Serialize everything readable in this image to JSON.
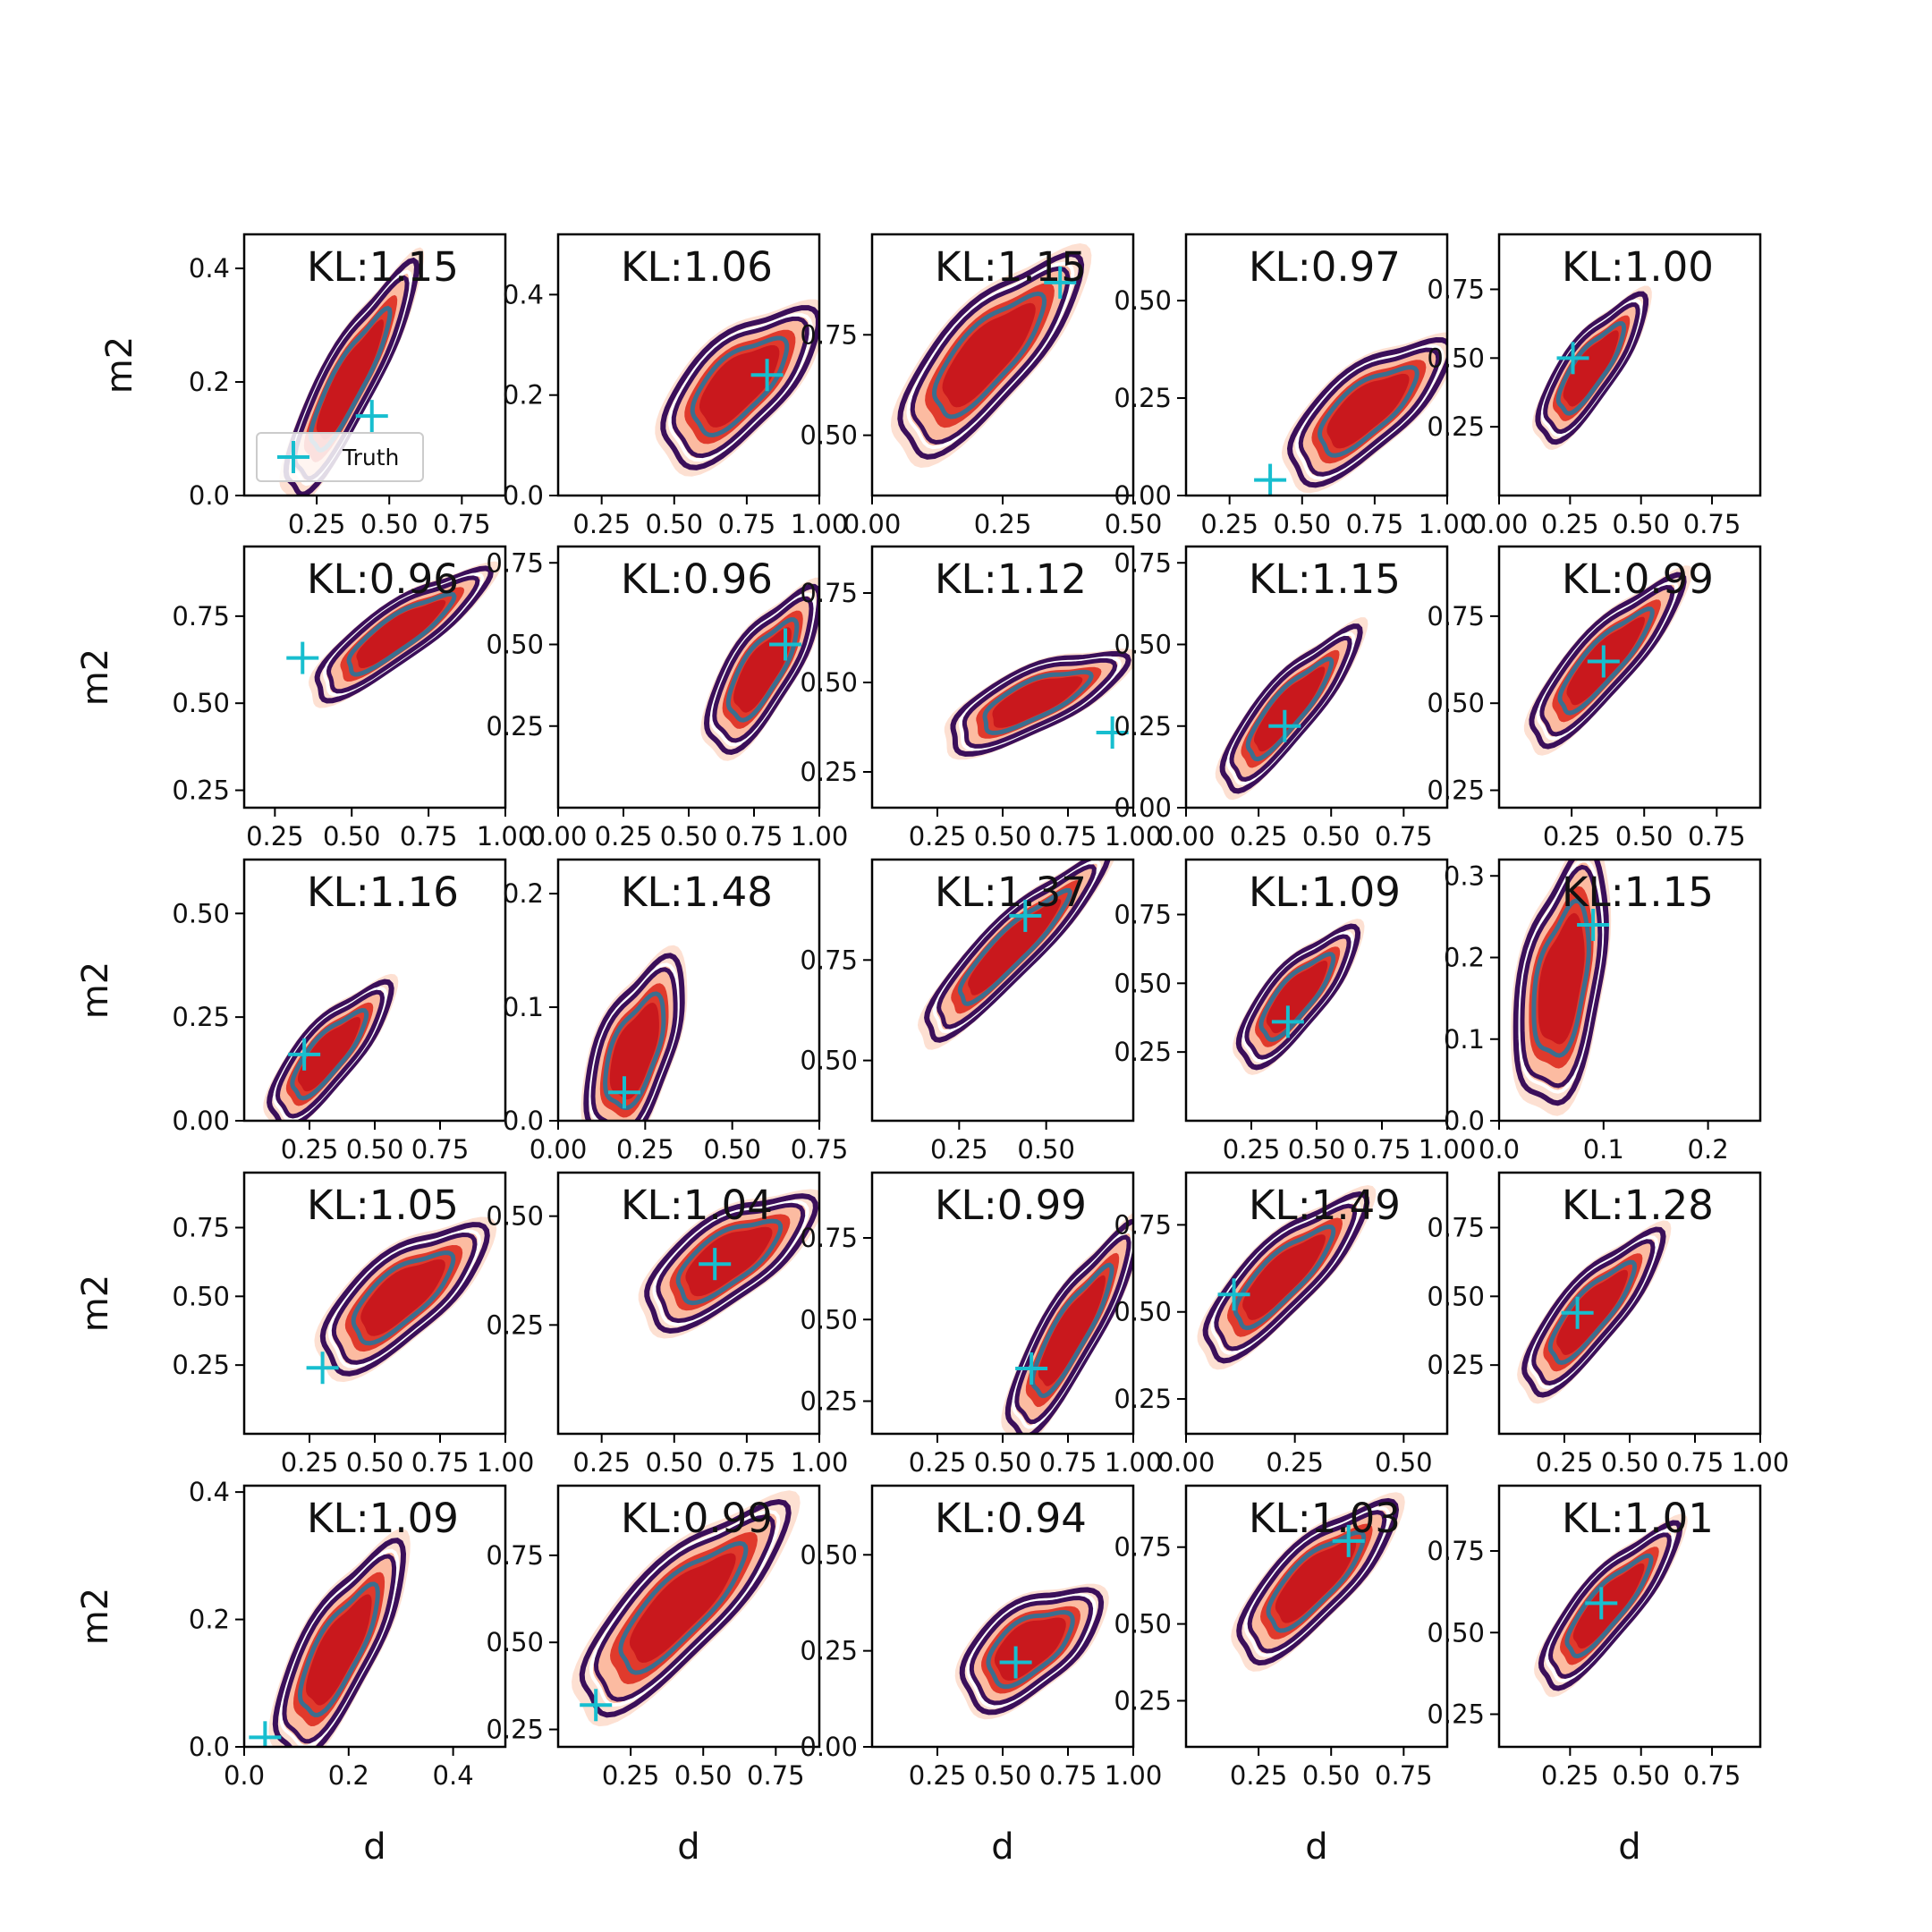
{
  "chart_data": {
    "type": "contour",
    "grid": {
      "rows": 5,
      "cols": 5
    },
    "xlabel": "d",
    "ylabel": "m2",
    "kl_prefix": "KL:",
    "legend": {
      "label": "Truth",
      "placement": "lower-left",
      "panel": 0
    },
    "colors": {
      "fill_levels": [
        "#fde0d2",
        "#fcbba1",
        "#e03a2c",
        "#c9181d"
      ],
      "line_outer": "#3b0f5a",
      "line_mid": "#ffffff",
      "line_inner": "#3b6e8f",
      "truth": "#17becf",
      "frame": "#000000"
    },
    "panels": [
      {
        "kl": "1.15",
        "xlim": [
          0.0,
          0.9
        ],
        "ylim": [
          0.0,
          0.46
        ],
        "xticks": [
          0.25,
          0.5,
          0.75
        ],
        "xtick_labels": [
          "0.25",
          "0.50",
          "0.75"
        ],
        "yticks": [
          0.0,
          0.2,
          0.4
        ],
        "ytick_labels": [
          "0.0",
          "0.2",
          "0.4"
        ],
        "truth": [
          0.44,
          0.14
        ],
        "center": [
          0.36,
          0.2
        ],
        "spread": [
          0.12,
          0.16
        ],
        "angle": 62
      },
      {
        "kl": "1.06",
        "xlim": [
          0.1,
          1.0
        ],
        "ylim": [
          0.0,
          0.52
        ],
        "xticks": [
          0.25,
          0.5,
          0.75,
          1.0
        ],
        "xtick_labels": [
          "0.25",
          "0.50",
          "0.75",
          "1.00"
        ],
        "yticks": [
          0.0,
          0.2,
          0.4
        ],
        "ytick_labels": [
          "0.0",
          "0.2",
          "0.4"
        ],
        "truth": [
          0.82,
          0.24
        ],
        "center": [
          0.72,
          0.22
        ],
        "spread": [
          0.2,
          0.14
        ],
        "angle": 45
      },
      {
        "kl": "1.15",
        "xlim": [
          0.0,
          0.5
        ],
        "ylim": [
          0.35,
          1.0
        ],
        "xticks": [
          0.0,
          0.25,
          0.5
        ],
        "xtick_labels": [
          "0.00",
          "0.25",
          "0.50"
        ],
        "yticks": [
          0.5,
          0.75
        ],
        "ytick_labels": [
          "0.50",
          "0.75"
        ],
        "truth": [
          0.36,
          0.88
        ],
        "center": [
          0.22,
          0.7
        ],
        "spread": [
          0.11,
          0.22
        ],
        "angle": 48
      },
      {
        "kl": "0.97",
        "xlim": [
          0.1,
          1.0
        ],
        "ylim": [
          0.0,
          0.67
        ],
        "xticks": [
          0.25,
          0.5,
          0.75,
          1.0
        ],
        "xtick_labels": [
          "0.25",
          "0.50",
          "0.75",
          "1.00"
        ],
        "yticks": [
          0.0,
          0.25,
          0.5
        ],
        "ytick_labels": [
          "0.00",
          "0.25",
          "0.50"
        ],
        "truth": [
          0.39,
          0.04
        ],
        "center": [
          0.72,
          0.22
        ],
        "spread": [
          0.24,
          0.13
        ],
        "angle": 40
      },
      {
        "kl": "1.00",
        "xlim": [
          0.0,
          0.92
        ],
        "ylim": [
          0.0,
          0.95
        ],
        "xticks": [
          0.0,
          0.25,
          0.5,
          0.75
        ],
        "xtick_labels": [
          "0.00",
          "0.25",
          "0.50",
          "0.75"
        ],
        "yticks": [
          0.25,
          0.5,
          0.75
        ],
        "ytick_labels": [
          "0.25",
          "0.50",
          "0.75"
        ],
        "truth": [
          0.26,
          0.5
        ],
        "center": [
          0.32,
          0.46
        ],
        "spread": [
          0.12,
          0.22
        ],
        "angle": 55
      },
      {
        "kl": "0.96",
        "xlim": [
          0.15,
          1.0
        ],
        "ylim": [
          0.2,
          0.95
        ],
        "xticks": [
          0.25,
          0.5,
          0.75,
          1.0
        ],
        "xtick_labels": [
          "0.25",
          "0.50",
          "0.75",
          "1.00"
        ],
        "yticks": [
          0.25,
          0.5,
          0.75
        ],
        "ytick_labels": [
          "0.25",
          "0.50",
          "0.75"
        ],
        "truth": [
          0.34,
          0.63
        ],
        "center": [
          0.65,
          0.7
        ],
        "spread": [
          0.24,
          0.1
        ],
        "angle": 35
      },
      {
        "kl": "0.96",
        "xlim": [
          0.0,
          1.0
        ],
        "ylim": [
          0.0,
          0.8
        ],
        "xticks": [
          0.0,
          0.25,
          0.5,
          0.75,
          1.0
        ],
        "xtick_labels": [
          "0.00",
          "0.25",
          "0.50",
          "0.75",
          "1.00"
        ],
        "yticks": [
          0.25,
          0.5,
          0.75
        ],
        "ytick_labels": [
          "0.25",
          "0.50",
          "0.75"
        ],
        "truth": [
          0.87,
          0.5
        ],
        "center": [
          0.78,
          0.42
        ],
        "spread": [
          0.16,
          0.2
        ],
        "angle": 58
      },
      {
        "kl": "1.12",
        "xlim": [
          0.0,
          1.0
        ],
        "ylim": [
          0.15,
          0.88
        ],
        "xticks": [
          0.25,
          0.5,
          0.75,
          1.0
        ],
        "xtick_labels": [
          "0.25",
          "0.50",
          "0.75",
          "1.00"
        ],
        "yticks": [
          0.25,
          0.5,
          0.75
        ],
        "ytick_labels": [
          "0.25",
          "0.50",
          "0.75"
        ],
        "truth": [
          0.92,
          0.36
        ],
        "center": [
          0.62,
          0.45
        ],
        "spread": [
          0.26,
          0.11
        ],
        "angle": 25
      },
      {
        "kl": "1.15",
        "xlim": [
          0.0,
          0.9
        ],
        "ylim": [
          0.0,
          0.8
        ],
        "xticks": [
          0.0,
          0.25,
          0.5,
          0.75
        ],
        "xtick_labels": [
          "0.00",
          "0.25",
          "0.50",
          "0.75"
        ],
        "yticks": [
          0.0,
          0.25,
          0.5,
          0.75
        ],
        "ytick_labels": [
          "0.00",
          "0.25",
          "0.50",
          "0.75"
        ],
        "truth": [
          0.34,
          0.25
        ],
        "center": [
          0.35,
          0.3
        ],
        "spread": [
          0.12,
          0.22
        ],
        "angle": 50
      },
      {
        "kl": "0.99",
        "xlim": [
          0.0,
          0.9
        ],
        "ylim": [
          0.2,
          0.95
        ],
        "xticks": [
          0.25,
          0.5,
          0.75
        ],
        "xtick_labels": [
          "0.25",
          "0.50",
          "0.75"
        ],
        "yticks": [
          0.25,
          0.5,
          0.75
        ],
        "ytick_labels": [
          "0.25",
          "0.50",
          "0.75"
        ],
        "truth": [
          0.36,
          0.62
        ],
        "center": [
          0.36,
          0.62
        ],
        "spread": [
          0.13,
          0.22
        ],
        "angle": 48
      },
      {
        "kl": "1.16",
        "xlim": [
          0.0,
          1.0
        ],
        "ylim": [
          0.0,
          0.63
        ],
        "xticks": [
          0.25,
          0.5,
          0.75
        ],
        "xtick_labels": [
          "0.25",
          "0.50",
          "0.75"
        ],
        "yticks": [
          0.0,
          0.25,
          0.5
        ],
        "ytick_labels": [
          "0.00",
          "0.25",
          "0.50"
        ],
        "truth": [
          0.23,
          0.16
        ],
        "center": [
          0.32,
          0.16
        ],
        "spread": [
          0.14,
          0.15
        ],
        "angle": 50
      },
      {
        "kl": "1.48",
        "xlim": [
          0.0,
          0.75
        ],
        "ylim": [
          0.0,
          0.23
        ],
        "xticks": [
          0.0,
          0.25,
          0.5,
          0.75
        ],
        "xtick_labels": [
          "0.00",
          "0.25",
          "0.50",
          "0.75"
        ],
        "yticks": [
          0.0,
          0.1,
          0.2
        ],
        "ytick_labels": [
          "0.0",
          "0.1",
          "0.2"
        ],
        "truth": [
          0.19,
          0.025
        ],
        "center": [
          0.22,
          0.06
        ],
        "spread": [
          0.14,
          0.06
        ],
        "angle": 70
      },
      {
        "kl": "1.37",
        "xlim": [
          0.0,
          0.75
        ],
        "ylim": [
          0.35,
          1.0
        ],
        "xticks": [
          0.25,
          0.5
        ],
        "xtick_labels": [
          "0.25",
          "0.50"
        ],
        "yticks": [
          0.5,
          0.75
        ],
        "ytick_labels": [
          "0.50",
          "0.75"
        ],
        "truth": [
          0.44,
          0.86
        ],
        "center": [
          0.4,
          0.78
        ],
        "spread": [
          0.1,
          0.22
        ],
        "angle": 45
      },
      {
        "kl": "1.09",
        "xlim": [
          0.0,
          1.0
        ],
        "ylim": [
          0.0,
          0.95
        ],
        "xticks": [
          0.25,
          0.5,
          0.75,
          1.0
        ],
        "xtick_labels": [
          "0.25",
          "0.50",
          "0.75",
          "1.00"
        ],
        "yticks": [
          0.25,
          0.5,
          0.75
        ],
        "ytick_labels": [
          "0.25",
          "0.50",
          "0.75"
        ],
        "truth": [
          0.39,
          0.36
        ],
        "center": [
          0.42,
          0.45
        ],
        "spread": [
          0.14,
          0.22
        ],
        "angle": 50
      },
      {
        "kl": "1.15",
        "xlim": [
          0.0,
          0.25
        ],
        "ylim": [
          0.0,
          0.32
        ],
        "xticks": [
          0.0,
          0.1,
          0.2
        ],
        "xtick_labels": [
          "0.0",
          "0.1",
          "0.2"
        ],
        "yticks": [
          0.0,
          0.1,
          0.2,
          0.3
        ],
        "ytick_labels": [
          "0.0",
          "0.1",
          "0.2",
          "0.3"
        ],
        "truth": [
          0.09,
          0.24
        ],
        "center": [
          0.06,
          0.17
        ],
        "spread": [
          0.05,
          0.11
        ],
        "angle": 80
      },
      {
        "kl": "1.05",
        "xlim": [
          0.0,
          1.0
        ],
        "ylim": [
          0.0,
          0.95
        ],
        "xticks": [
          0.25,
          0.5,
          0.75,
          1.0
        ],
        "xtick_labels": [
          "0.25",
          "0.50",
          "0.75",
          "1.00"
        ],
        "yticks": [
          0.25,
          0.5,
          0.75
        ],
        "ytick_labels": [
          "0.25",
          "0.50",
          "0.75"
        ],
        "truth": [
          0.3,
          0.24
        ],
        "center": [
          0.6,
          0.5
        ],
        "spread": [
          0.2,
          0.26
        ],
        "angle": 40
      },
      {
        "kl": "1.04",
        "xlim": [
          0.1,
          1.0
        ],
        "ylim": [
          0.0,
          0.6
        ],
        "xticks": [
          0.25,
          0.5,
          0.75,
          1.0
        ],
        "xtick_labels": [
          "0.25",
          "0.50",
          "0.75",
          "1.00"
        ],
        "yticks": [
          0.25,
          0.5
        ],
        "ytick_labels": [
          "0.25",
          "0.50"
        ],
        "truth": [
          0.64,
          0.39
        ],
        "center": [
          0.68,
          0.4
        ],
        "spread": [
          0.24,
          0.12
        ],
        "angle": 35
      },
      {
        "kl": "0.99",
        "xlim": [
          0.0,
          1.0
        ],
        "ylim": [
          0.15,
          0.95
        ],
        "xticks": [
          0.25,
          0.5,
          0.75,
          1.0
        ],
        "xtick_labels": [
          "0.25",
          "0.50",
          "0.75",
          "1.00"
        ],
        "yticks": [
          0.25,
          0.5,
          0.75
        ],
        "ytick_labels": [
          "0.25",
          "0.50",
          "0.75"
        ],
        "truth": [
          0.61,
          0.35
        ],
        "center": [
          0.76,
          0.46
        ],
        "spread": [
          0.14,
          0.26
        ],
        "angle": 60
      },
      {
        "kl": "1.49",
        "xlim": [
          0.0,
          0.6
        ],
        "ylim": [
          0.15,
          0.9
        ],
        "xticks": [
          0.0,
          0.25,
          0.5
        ],
        "xtick_labels": [
          "0.00",
          "0.25",
          "0.50"
        ],
        "yticks": [
          0.25,
          0.5,
          0.75
        ],
        "ytick_labels": [
          "0.25",
          "0.50",
          "0.75"
        ],
        "truth": [
          0.11,
          0.55
        ],
        "center": [
          0.22,
          0.6
        ],
        "spread": [
          0.1,
          0.22
        ],
        "angle": 45
      },
      {
        "kl": "1.28",
        "xlim": [
          0.0,
          1.0
        ],
        "ylim": [
          0.0,
          0.95
        ],
        "xticks": [
          0.25,
          0.5,
          0.75,
          1.0
        ],
        "xtick_labels": [
          "0.25",
          "0.50",
          "0.75",
          "1.00"
        ],
        "yticks": [
          0.25,
          0.5,
          0.75
        ],
        "ytick_labels": [
          "0.25",
          "0.50",
          "0.75"
        ],
        "truth": [
          0.3,
          0.44
        ],
        "center": [
          0.35,
          0.44
        ],
        "spread": [
          0.15,
          0.26
        ],
        "angle": 50
      },
      {
        "kl": "1.09",
        "xlim": [
          0.0,
          0.5
        ],
        "ylim": [
          0.0,
          0.41
        ],
        "xticks": [
          0.0,
          0.2,
          0.4
        ],
        "xtick_labels": [
          "0.0",
          "0.2",
          "0.4"
        ],
        "yticks": [
          0.0,
          0.2,
          0.4
        ],
        "ytick_labels": [
          "0.0",
          "0.2",
          "0.4"
        ],
        "truth": [
          0.04,
          0.015
        ],
        "center": [
          0.18,
          0.15
        ],
        "spread": [
          0.09,
          0.13
        ],
        "angle": 62
      },
      {
        "kl": "0.99",
        "xlim": [
          0.0,
          0.9
        ],
        "ylim": [
          0.2,
          0.95
        ],
        "xticks": [
          0.25,
          0.5,
          0.75
        ],
        "xtick_labels": [
          "0.25",
          "0.50",
          "0.75"
        ],
        "yticks": [
          0.25,
          0.5,
          0.75
        ],
        "ytick_labels": [
          "0.25",
          "0.50",
          "0.75"
        ],
        "truth": [
          0.13,
          0.32
        ],
        "center": [
          0.42,
          0.6
        ],
        "spread": [
          0.2,
          0.28
        ],
        "angle": 45
      },
      {
        "kl": "0.94",
        "xlim": [
          0.0,
          1.0
        ],
        "ylim": [
          0.0,
          0.68
        ],
        "xticks": [
          0.25,
          0.5,
          0.75,
          1.0
        ],
        "xtick_labels": [
          "0.25",
          "0.50",
          "0.75",
          "1.00"
        ],
        "yticks": [
          0.0,
          0.25,
          0.5
        ],
        "ytick_labels": [
          "0.00",
          "0.25",
          "0.50"
        ],
        "truth": [
          0.55,
          0.22
        ],
        "center": [
          0.6,
          0.26
        ],
        "spread": [
          0.22,
          0.14
        ],
        "angle": 38
      },
      {
        "kl": "1.03",
        "xlim": [
          0.0,
          0.9
        ],
        "ylim": [
          0.1,
          0.95
        ],
        "xticks": [
          0.25,
          0.5,
          0.75
        ],
        "xtick_labels": [
          "0.25",
          "0.50",
          "0.75"
        ],
        "yticks": [
          0.25,
          0.5,
          0.75
        ],
        "ytick_labels": [
          "0.25",
          "0.50",
          "0.75"
        ],
        "truth": [
          0.56,
          0.77
        ],
        "center": [
          0.44,
          0.64
        ],
        "spread": [
          0.16,
          0.24
        ],
        "angle": 45
      },
      {
        "kl": "1.01",
        "xlim": [
          0.0,
          0.92
        ],
        "ylim": [
          0.15,
          0.95
        ],
        "xticks": [
          0.25,
          0.5,
          0.75
        ],
        "xtick_labels": [
          "0.25",
          "0.50",
          "0.75"
        ],
        "yticks": [
          0.25,
          0.5,
          0.75
        ],
        "ytick_labels": [
          "0.25",
          "0.50",
          "0.75"
        ],
        "truth": [
          0.36,
          0.59
        ],
        "center": [
          0.38,
          0.58
        ],
        "spread": [
          0.13,
          0.22
        ],
        "angle": 50
      }
    ]
  }
}
